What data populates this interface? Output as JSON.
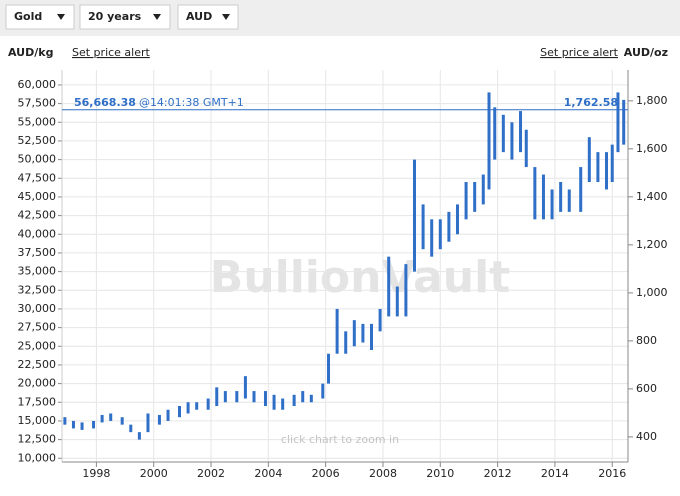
{
  "controls": [
    {
      "label": "Gold"
    },
    {
      "label": "20 years"
    },
    {
      "label": "AUD"
    }
  ],
  "header": {
    "left_unit": "AUD/kg",
    "left_link": "Set price alert",
    "right_link": "Set price alert",
    "right_unit": "AUD/oz"
  },
  "chart_data": {
    "type": "range-bar",
    "watermark": "BullionVault",
    "hint": "click chart to zoom in",
    "current_price": {
      "value": 56668.38,
      "label": "56,668.38"
    },
    "current_time": "@14:01:38 GMT+1",
    "current_price_oz": {
      "value": 1762.58,
      "label": "1,762.58"
    },
    "color": "#2f6fc8",
    "grid": true,
    "x": [
      1996.9,
      1997.2,
      1997.5,
      1997.9,
      1998.2,
      1998.5,
      1998.9,
      1999.2,
      1999.5,
      1999.8,
      2000.2,
      2000.5,
      2000.9,
      2001.2,
      2001.5,
      2001.9,
      2002.2,
      2002.5,
      2002.9,
      2003.2,
      2003.5,
      2003.9,
      2004.2,
      2004.5,
      2004.9,
      2005.2,
      2005.5,
      2005.9,
      2006.1,
      2006.4,
      2006.7,
      2007.0,
      2007.3,
      2007.6,
      2007.9,
      2008.2,
      2008.5,
      2008.8,
      2009.1,
      2009.4,
      2009.7,
      2010.0,
      2010.3,
      2010.6,
      2010.9,
      2011.2,
      2011.5,
      2011.7,
      2011.9,
      2012.2,
      2012.5,
      2012.8,
      2013.0,
      2013.3,
      2013.6,
      2013.9,
      2014.2,
      2014.5,
      2014.9,
      2015.2,
      2015.5,
      2015.8,
      2016.0,
      2016.2,
      2016.4
    ],
    "series": [
      {
        "name": "low",
        "values": [
          14500,
          14000,
          13800,
          14000,
          14800,
          15000,
          14500,
          13500,
          12500,
          13500,
          14500,
          15000,
          15500,
          16000,
          16500,
          16500,
          17000,
          17500,
          17500,
          18000,
          17500,
          17000,
          16500,
          16500,
          17000,
          17500,
          17500,
          18000,
          20000,
          24000,
          24000,
          25000,
          25500,
          24500,
          27000,
          29000,
          29000,
          29000,
          35000,
          38000,
          37000,
          38000,
          39000,
          40000,
          42000,
          43000,
          44000,
          46000,
          50000,
          51000,
          50000,
          51000,
          49000,
          42000,
          42000,
          42000,
          43000,
          43000,
          43000,
          47000,
          47000,
          46000,
          47000,
          51000,
          52000
        ]
      },
      {
        "name": "high",
        "values": [
          15500,
          15000,
          14800,
          15000,
          15800,
          16000,
          15500,
          14500,
          13500,
          16000,
          15800,
          16500,
          17000,
          17500,
          17500,
          18000,
          19500,
          19000,
          19000,
          21000,
          19000,
          19000,
          18500,
          18000,
          18500,
          19000,
          18500,
          20000,
          24000,
          30000,
          27000,
          28500,
          28000,
          28000,
          30000,
          37000,
          33000,
          36000,
          50000,
          44000,
          42000,
          42000,
          43000,
          44000,
          47000,
          47000,
          48000,
          59000,
          57000,
          56000,
          55000,
          56500,
          54000,
          49000,
          48000,
          46000,
          47000,
          46000,
          49000,
          53000,
          51000,
          51000,
          52000,
          59000,
          58000
        ]
      }
    ],
    "xlim": [
      1996.8,
      2016.55
    ],
    "xticks": [
      1998,
      2000,
      2002,
      2004,
      2006,
      2008,
      2010,
      2012,
      2014,
      2016
    ],
    "ylim": [
      9500,
      62000
    ],
    "yticks": [
      {
        "value": 10000,
        "label": "10,000"
      },
      {
        "value": 12500,
        "label": "12,500"
      },
      {
        "value": 15000,
        "label": "15,000"
      },
      {
        "value": 17500,
        "label": "17,500"
      },
      {
        "value": 20000,
        "label": "20,000"
      },
      {
        "value": 22500,
        "label": "22,500"
      },
      {
        "value": 25000,
        "label": "25,000"
      },
      {
        "value": 27500,
        "label": "27,500"
      },
      {
        "value": 30000,
        "label": "30,000"
      },
      {
        "value": 32500,
        "label": "32,500"
      },
      {
        "value": 35000,
        "label": "35,000"
      },
      {
        "value": 37500,
        "label": "37,500"
      },
      {
        "value": 40000,
        "label": "40,000"
      },
      {
        "value": 42500,
        "label": "42,500"
      },
      {
        "value": 45000,
        "label": "45,000"
      },
      {
        "value": 47500,
        "label": "47,500"
      },
      {
        "value": 50000,
        "label": "50,000"
      },
      {
        "value": 52500,
        "label": "52,500"
      },
      {
        "value": 55000,
        "label": "55,000"
      },
      {
        "value": 57500,
        "label": "57,500"
      },
      {
        "value": 60000,
        "label": "60,000"
      }
    ],
    "y2lim": [
      295.5,
      1928.4
    ],
    "y2ticks": [
      400,
      600,
      800,
      {
        "value": 1000,
        "label": "1,000"
      },
      {
        "value": 1200,
        "label": "1,200"
      },
      {
        "value": 1400,
        "label": "1,400"
      },
      {
        "value": 1600,
        "label": "1,600"
      },
      {
        "value": 1800,
        "label": "1,800"
      }
    ]
  }
}
